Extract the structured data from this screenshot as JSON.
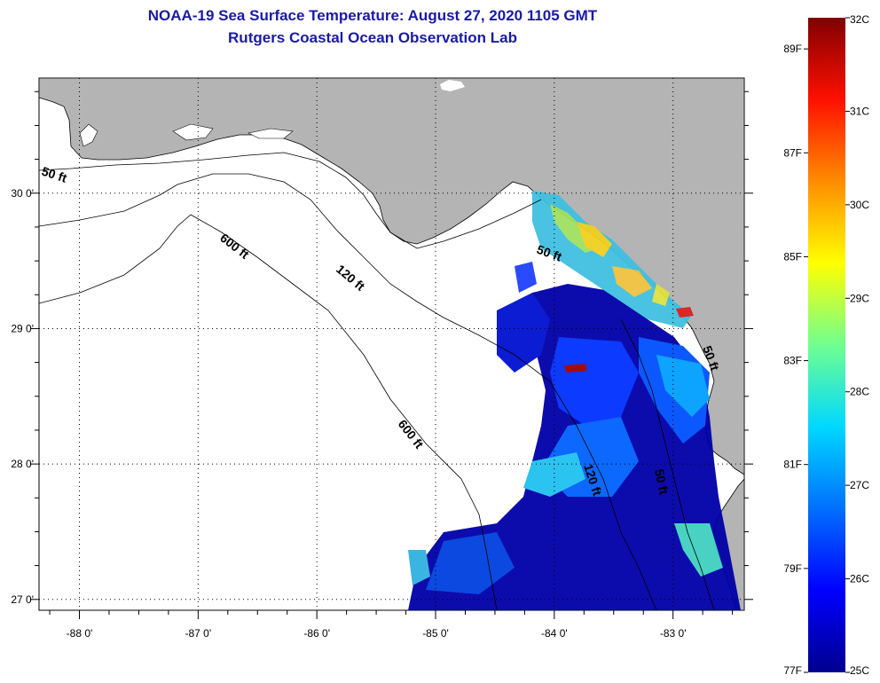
{
  "header": {
    "title": "NOAA-19 Sea Surface Temperature:  August 27, 2020 1105 GMT",
    "subtitle": "Rutgers Coastal Ocean Observation Lab"
  },
  "map": {
    "region": "Gulf of Mexico / Florida",
    "lon_range": [
      -88.34,
      -82.4
    ],
    "lat_range": [
      26.92,
      30.85
    ],
    "lon_ticks": [
      "-88 0'",
      "-87 0'",
      "-86 0'",
      "-85 0'",
      "-84 0'",
      "-83 0'"
    ],
    "lat_ticks": [
      "30 0'",
      "29 0'",
      "28 0'",
      "27 0'"
    ],
    "land_color": "#b4b4b4",
    "contour_labels": [
      "50 ft",
      "600 ft",
      "120 ft",
      "600 ft",
      "50 ft",
      "120 ft",
      "50 ft",
      "50 ft"
    ]
  },
  "colorbar": {
    "celsius_labels": [
      "32C",
      "31C",
      "30C",
      "29C",
      "28C",
      "27C",
      "26C",
      "25C"
    ],
    "fahrenheit_labels": [
      "89F",
      "87F",
      "85F",
      "83F",
      "81F",
      "79F",
      "77F"
    ],
    "celsius_range": [
      25,
      32
    ],
    "colors": [
      "#00008f",
      "#0000ff",
      "#0080ff",
      "#00ffff",
      "#80ff80",
      "#ffff00",
      "#ff8000",
      "#ff0000",
      "#800000"
    ]
  }
}
